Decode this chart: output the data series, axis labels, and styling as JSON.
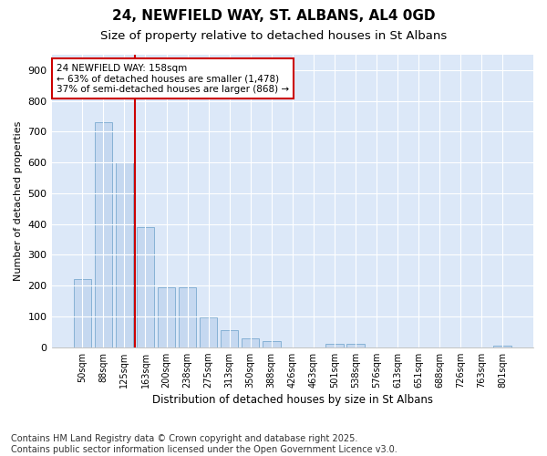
{
  "title_line1": "24, NEWFIELD WAY, ST. ALBANS, AL4 0GD",
  "title_line2": "Size of property relative to detached houses in St Albans",
  "xlabel": "Distribution of detached houses by size in St Albans",
  "ylabel": "Number of detached properties",
  "categories": [
    "50sqm",
    "88sqm",
    "125sqm",
    "163sqm",
    "200sqm",
    "238sqm",
    "275sqm",
    "313sqm",
    "350sqm",
    "388sqm",
    "426sqm",
    "463sqm",
    "501sqm",
    "538sqm",
    "576sqm",
    "613sqm",
    "651sqm",
    "688sqm",
    "726sqm",
    "763sqm",
    "801sqm"
  ],
  "values": [
    222,
    730,
    600,
    390,
    195,
    195,
    97,
    55,
    30,
    20,
    0,
    0,
    12,
    10,
    0,
    0,
    0,
    0,
    0,
    0,
    5
  ],
  "bar_color": "#c5d8f0",
  "bar_edge_color": "#7aaad0",
  "bg_color": "#dce8f8",
  "grid_color": "#ffffff",
  "vline_color": "#cc0000",
  "vline_index": 2.5,
  "annotation_text": "24 NEWFIELD WAY: 158sqm\n← 63% of detached houses are smaller (1,478)\n37% of semi-detached houses are larger (868) →",
  "annotation_box_color": "#ffffff",
  "annotation_box_edge": "#cc0000",
  "ylim": [
    0,
    950
  ],
  "yticks": [
    0,
    100,
    200,
    300,
    400,
    500,
    600,
    700,
    800,
    900
  ],
  "footnote": "Contains HM Land Registry data © Crown copyright and database right 2025.\nContains public sector information licensed under the Open Government Licence v3.0.",
  "title_fontsize": 11,
  "subtitle_fontsize": 9.5,
  "footnote_fontsize": 7
}
